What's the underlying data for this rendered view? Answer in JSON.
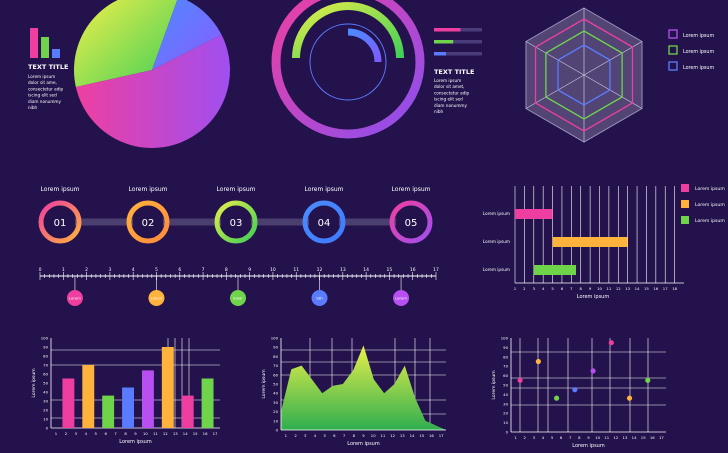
{
  "colors": {
    "bg": "#23124b",
    "grid": "#ffffff",
    "pink": "#ee3fa0",
    "purple": "#b84ff0",
    "blue": "#5b7bff",
    "green": "#6fd44a",
    "yellow": "#e3ed49",
    "orange": "#ffb23c"
  },
  "widget1": {
    "title": "TEXT TITLE",
    "text": [
      "Lorem ipsum",
      "dolor sit ame,",
      "consectetur adip",
      "iscing elit sed",
      "diam nonummy",
      "nibh"
    ],
    "mini_bars": [
      1.0,
      0.7,
      0.3
    ],
    "pie_values": [
      34,
      12,
      54
    ]
  },
  "widget2": {
    "title": "TEXT TITLE",
    "text": [
      "Lorem ipsum",
      "dolor sit amet,",
      "consectetur adip",
      "iscing elit sed",
      "diam nonummy",
      "nibh"
    ],
    "legend_fill": [
      0.55,
      0.4,
      0.25
    ]
  },
  "radar": {
    "axes": 6,
    "legend": [
      "Lorem ipsum",
      "Lorem ipsum",
      "Lorem ipsum"
    ]
  },
  "timeline": {
    "steps": [
      {
        "num": "01",
        "label": "Lorem ipsum"
      },
      {
        "num": "02",
        "label": "Lorem ipsum"
      },
      {
        "num": "03",
        "label": "Lorem ipsum"
      },
      {
        "num": "04",
        "label": "Lorem ipsum"
      },
      {
        "num": "05",
        "label": "Lorem ipsum"
      }
    ],
    "ruler_labels": [
      "0",
      "1",
      "2",
      "3",
      "4",
      "5",
      "6",
      "7",
      "8",
      "9",
      "10",
      "11",
      "12",
      "13",
      "14",
      "15",
      "16",
      "17"
    ],
    "dots": [
      {
        "value": 1.5,
        "label": "Lorem"
      },
      {
        "value": 5.0,
        "label": "Lorem"
      },
      {
        "value": 8.5,
        "label": "Solar"
      },
      {
        "value": 12.0,
        "label": "Sth"
      },
      {
        "value": 15.5,
        "label": "Lorem"
      }
    ]
  },
  "chart_data": [
    {
      "type": "gantt",
      "rows": [
        {
          "label": "Lorem ipsum",
          "start": 1,
          "end": 5,
          "color": "#ee3fa0"
        },
        {
          "label": "Lorem ipsum",
          "start": 5,
          "end": 13,
          "color": "#ffb23c"
        },
        {
          "label": "Lorem ipsum",
          "start": 3,
          "end": 7.5,
          "color": "#6fd44a"
        }
      ],
      "x_ticks": [
        "1",
        "2",
        "3",
        "4",
        "5",
        "6",
        "7",
        "8",
        "9",
        "10",
        "11",
        "12",
        "13",
        "14",
        "15",
        "16",
        "17",
        "18"
      ],
      "xlim": [
        1,
        19
      ],
      "xlabel": "Lorem ipsum",
      "legend": [
        "Lorem ipsum",
        "Lorem ipsum",
        "Lorem ipsum"
      ]
    },
    {
      "type": "bar",
      "categories": [
        "1",
        "2",
        "3",
        "4",
        "5",
        "6",
        "7",
        "8",
        "9",
        "10",
        "11",
        "12",
        "13",
        "14",
        "15",
        "16",
        "17"
      ],
      "values": [
        0,
        55,
        0,
        70,
        0,
        36,
        0,
        45,
        0,
        64,
        0,
        90,
        0,
        36,
        0,
        55,
        0
      ],
      "ylim": [
        0,
        100
      ],
      "y_ticks": [
        "0",
        "10",
        "20",
        "30",
        "40",
        "50",
        "60",
        "70",
        "80",
        "90",
        "100"
      ],
      "xlabel": "Lorem ipsum",
      "ylabel": "Lorem ipsum"
    },
    {
      "type": "area",
      "x": [
        0,
        1,
        2,
        3,
        4,
        5,
        6,
        7,
        8,
        9,
        10,
        11,
        12,
        13,
        14,
        15,
        16
      ],
      "values": [
        20,
        66,
        70,
        55,
        40,
        48,
        50,
        65,
        92,
        55,
        40,
        50,
        70,
        35,
        10,
        5,
        0
      ],
      "ylim": [
        0,
        100
      ],
      "y_ticks": [
        "0",
        "10",
        "20",
        "30",
        "40",
        "50",
        "60",
        "70",
        "80",
        "90",
        "100"
      ],
      "x_ticks": [
        "1",
        "2",
        "3",
        "4",
        "5",
        "6",
        "7",
        "8",
        "9",
        "10",
        "11",
        "12",
        "13",
        "14",
        "15",
        "16",
        "17"
      ],
      "xlabel": "Lorem ipsum",
      "ylabel": "Lorem ipsum"
    },
    {
      "type": "scatter",
      "points": [
        {
          "x": 1,
          "y": 55,
          "color": "#ee3fa0"
        },
        {
          "x": 3,
          "y": 75,
          "color": "#ffb23c"
        },
        {
          "x": 5,
          "y": 36,
          "color": "#6fd44a"
        },
        {
          "x": 7,
          "y": 45,
          "color": "#5b7bff"
        },
        {
          "x": 9,
          "y": 65,
          "color": "#b84ff0"
        },
        {
          "x": 11,
          "y": 95,
          "color": "#ee3fa0"
        },
        {
          "x": 13,
          "y": 36,
          "color": "#ffb23c"
        },
        {
          "x": 15,
          "y": 55,
          "color": "#6fd44a"
        }
      ],
      "xlim": [
        0,
        17
      ],
      "ylim": [
        0,
        100
      ],
      "y_ticks": [
        "0",
        "10",
        "20",
        "30",
        "40",
        "50",
        "60",
        "70",
        "80",
        "90",
        "100"
      ],
      "x_ticks": [
        "1",
        "2",
        "3",
        "4",
        "5",
        "6",
        "7",
        "8",
        "9",
        "10",
        "11",
        "12",
        "13",
        "14",
        "15",
        "16",
        "17"
      ],
      "xlabel": "Lorem ipsum",
      "ylabel": "Lorem ipsum"
    }
  ]
}
